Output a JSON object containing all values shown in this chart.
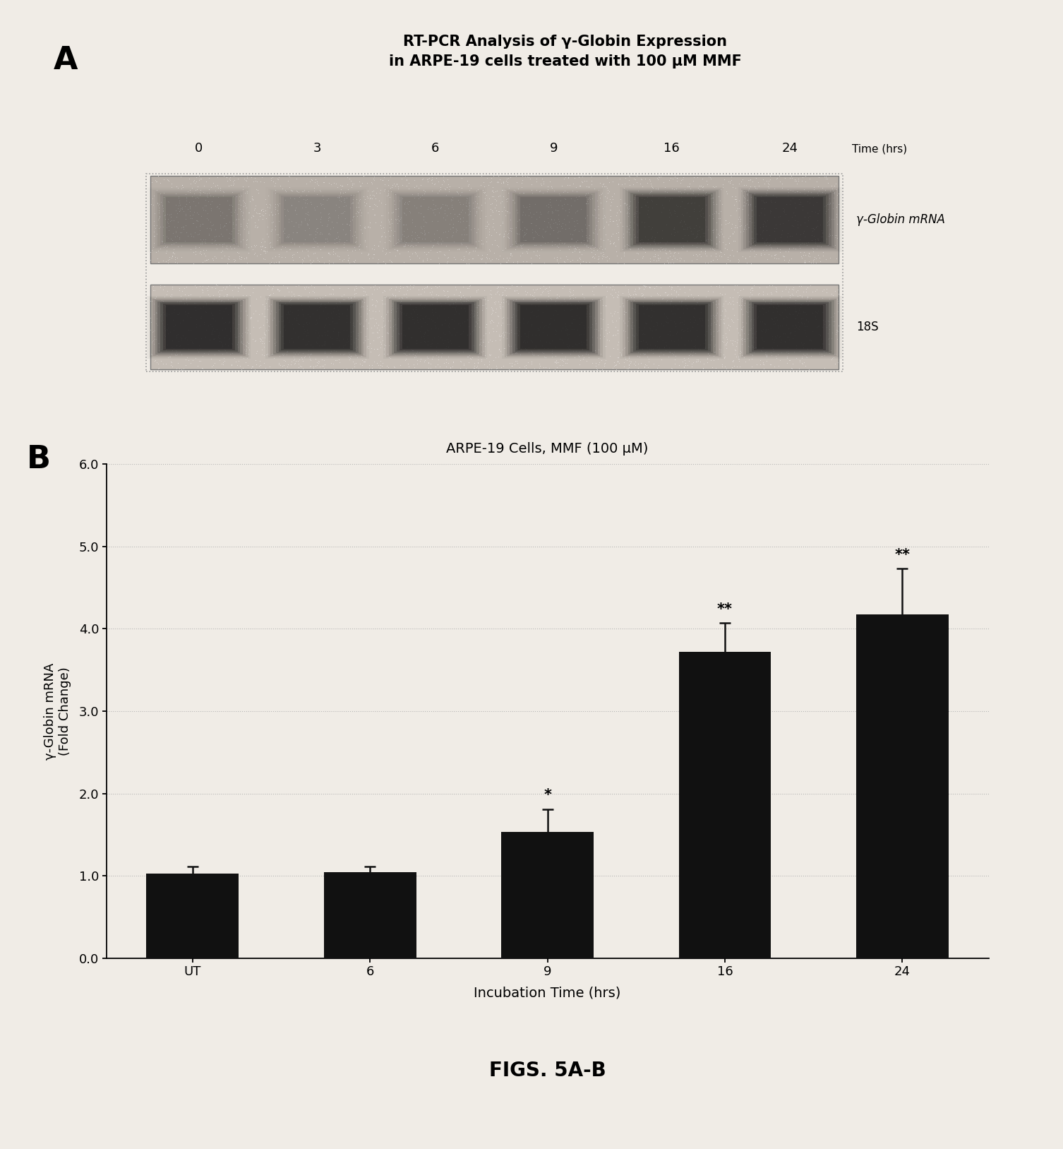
{
  "panel_A": {
    "title_line1": "RT-PCR Analysis of γ-Globin Expression",
    "title_line2": "in ARPE-19 cells treated with 100 μM MMF",
    "time_labels": [
      "0",
      "3",
      "6",
      "9",
      "16",
      "24"
    ],
    "time_label_suffix": "Time (hrs)",
    "band1_label": "γ-Globin mRNA",
    "band2_label": "18S",
    "band_top_intensities": [
      0.25,
      0.18,
      0.2,
      0.3,
      0.65,
      0.72
    ],
    "band_bottom_intensities": [
      0.88,
      0.86,
      0.87,
      0.89,
      0.86,
      0.87
    ]
  },
  "panel_B": {
    "title": "ARPE-19 Cells, MMF (100 μM)",
    "categories": [
      "UT",
      "6",
      "9",
      "16",
      "24"
    ],
    "values": [
      1.03,
      1.04,
      1.53,
      3.72,
      4.18
    ],
    "errors": [
      0.08,
      0.07,
      0.28,
      0.35,
      0.55
    ],
    "bar_color": "#111111",
    "error_color": "#111111",
    "ylabel_line1": "γ-Globin mRNA",
    "ylabel_line2": "(Fold Change)",
    "xlabel": "Incubation Time (hrs)",
    "ylim": [
      0.0,
      6.0
    ],
    "yticks": [
      0.0,
      1.0,
      2.0,
      3.0,
      4.0,
      5.0,
      6.0
    ],
    "significance": [
      "",
      "",
      "*",
      "**",
      "**"
    ]
  },
  "figure_caption": "FIGS. 5A-B",
  "background_color": "#f0ece6"
}
